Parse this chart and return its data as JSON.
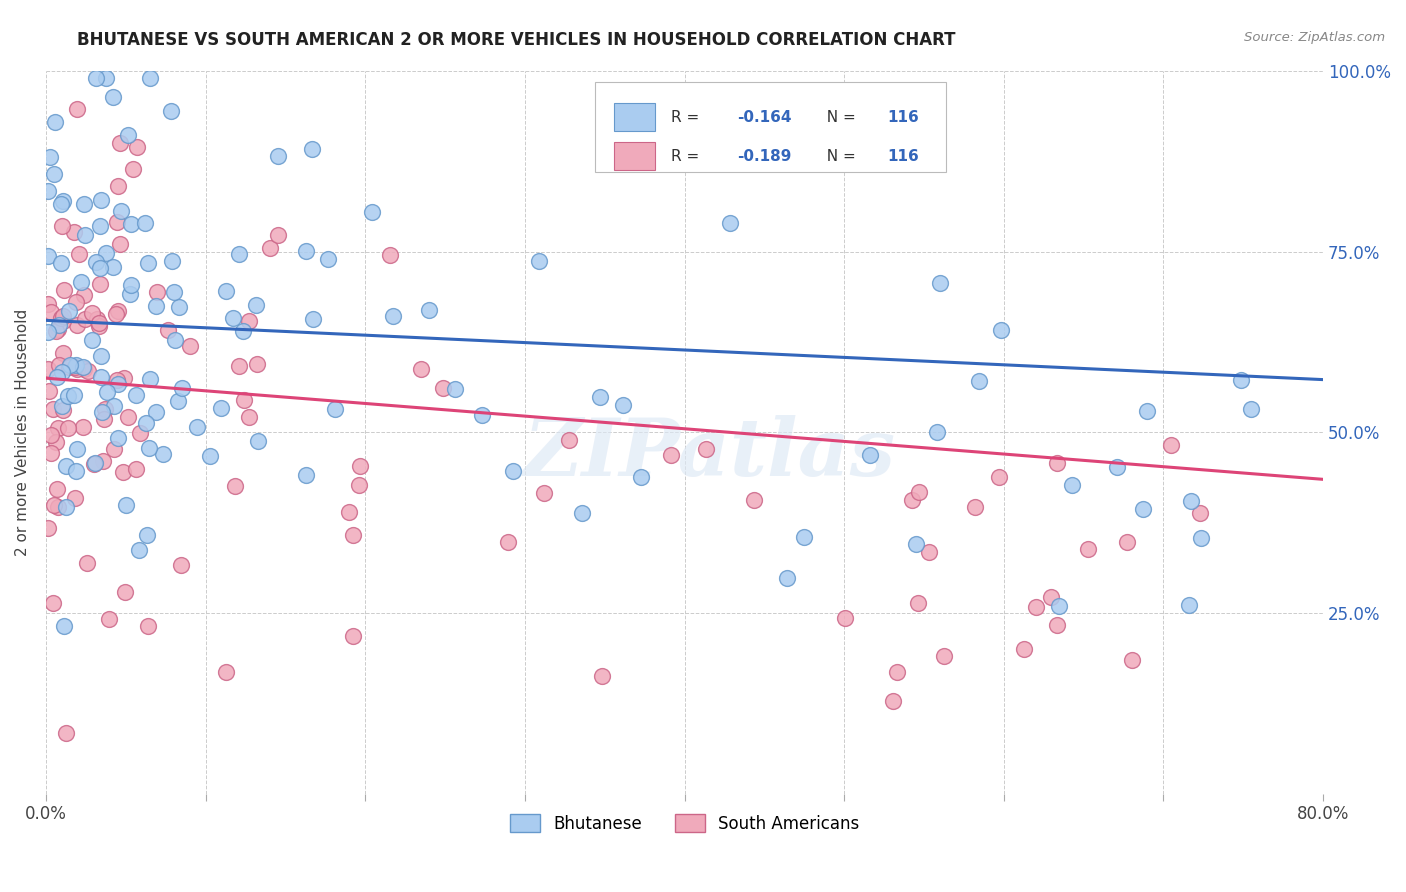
{
  "title": "BHUTANESE VS SOUTH AMERICAN 2 OR MORE VEHICLES IN HOUSEHOLD CORRELATION CHART",
  "source": "Source: ZipAtlas.com",
  "ylabel": "2 or more Vehicles in Household",
  "x_min": 0.0,
  "x_max": 0.8,
  "y_min": 0.0,
  "y_max": 1.0,
  "x_tick_positions": [
    0.0,
    0.1,
    0.2,
    0.3,
    0.4,
    0.5,
    0.6,
    0.7,
    0.8
  ],
  "x_tick_labels": [
    "0.0%",
    "",
    "",
    "",
    "",
    "",
    "",
    "",
    "80.0%"
  ],
  "y_tick_positions": [
    0.0,
    0.25,
    0.5,
    0.75,
    1.0
  ],
  "y_tick_labels_right": [
    "",
    "25.0%",
    "50.0%",
    "75.0%",
    "100.0%"
  ],
  "bhutanese_R": "-0.164",
  "bhutanese_N": "116",
  "south_american_R": "-0.189",
  "south_american_N": "116",
  "bhutanese_color": "#aaccf0",
  "bhutanese_edge_color": "#6699cc",
  "south_american_color": "#f0aabb",
  "south_american_edge_color": "#cc6688",
  "trend_bhutanese_color": "#3366bb",
  "trend_south_american_color": "#dd4477",
  "trend_bhu_x0": 0.0,
  "trend_bhu_y0": 0.655,
  "trend_bhu_x1": 0.8,
  "trend_bhu_y1": 0.573,
  "trend_sa_x0": 0.0,
  "trend_sa_y0": 0.575,
  "trend_sa_x1": 0.8,
  "trend_sa_y1": 0.435,
  "watermark": "ZIPatlas",
  "legend_R_N_color": "#3366bb",
  "title_color": "#222222",
  "source_color": "#888888",
  "right_axis_color": "#3366bb"
}
